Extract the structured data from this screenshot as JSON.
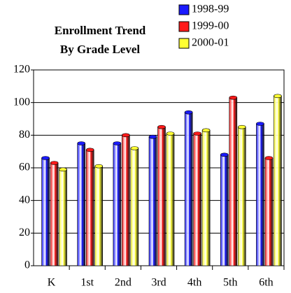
{
  "chart_data": {
    "type": "bar",
    "title": [
      "Enrollment Trend",
      "By Grade Level"
    ],
    "categories": [
      "K",
      "1st",
      "2nd",
      "3rd",
      "4th",
      "5th",
      "6th"
    ],
    "series": [
      {
        "name": "1998-99",
        "color": "#1a1aff",
        "values": [
          66,
          75,
          75,
          79,
          94,
          68,
          87
        ]
      },
      {
        "name": "1999-00",
        "color": "#ff1a1a",
        "values": [
          63,
          71,
          80,
          85,
          81,
          103,
          66
        ]
      },
      {
        "name": "2000-01",
        "color": "#ffff33",
        "values": [
          59,
          61,
          72,
          81,
          83,
          85,
          104
        ]
      }
    ],
    "ylim": [
      0,
      120
    ],
    "yticks": [
      0,
      20,
      40,
      60,
      80,
      100,
      120
    ],
    "grid": true
  }
}
